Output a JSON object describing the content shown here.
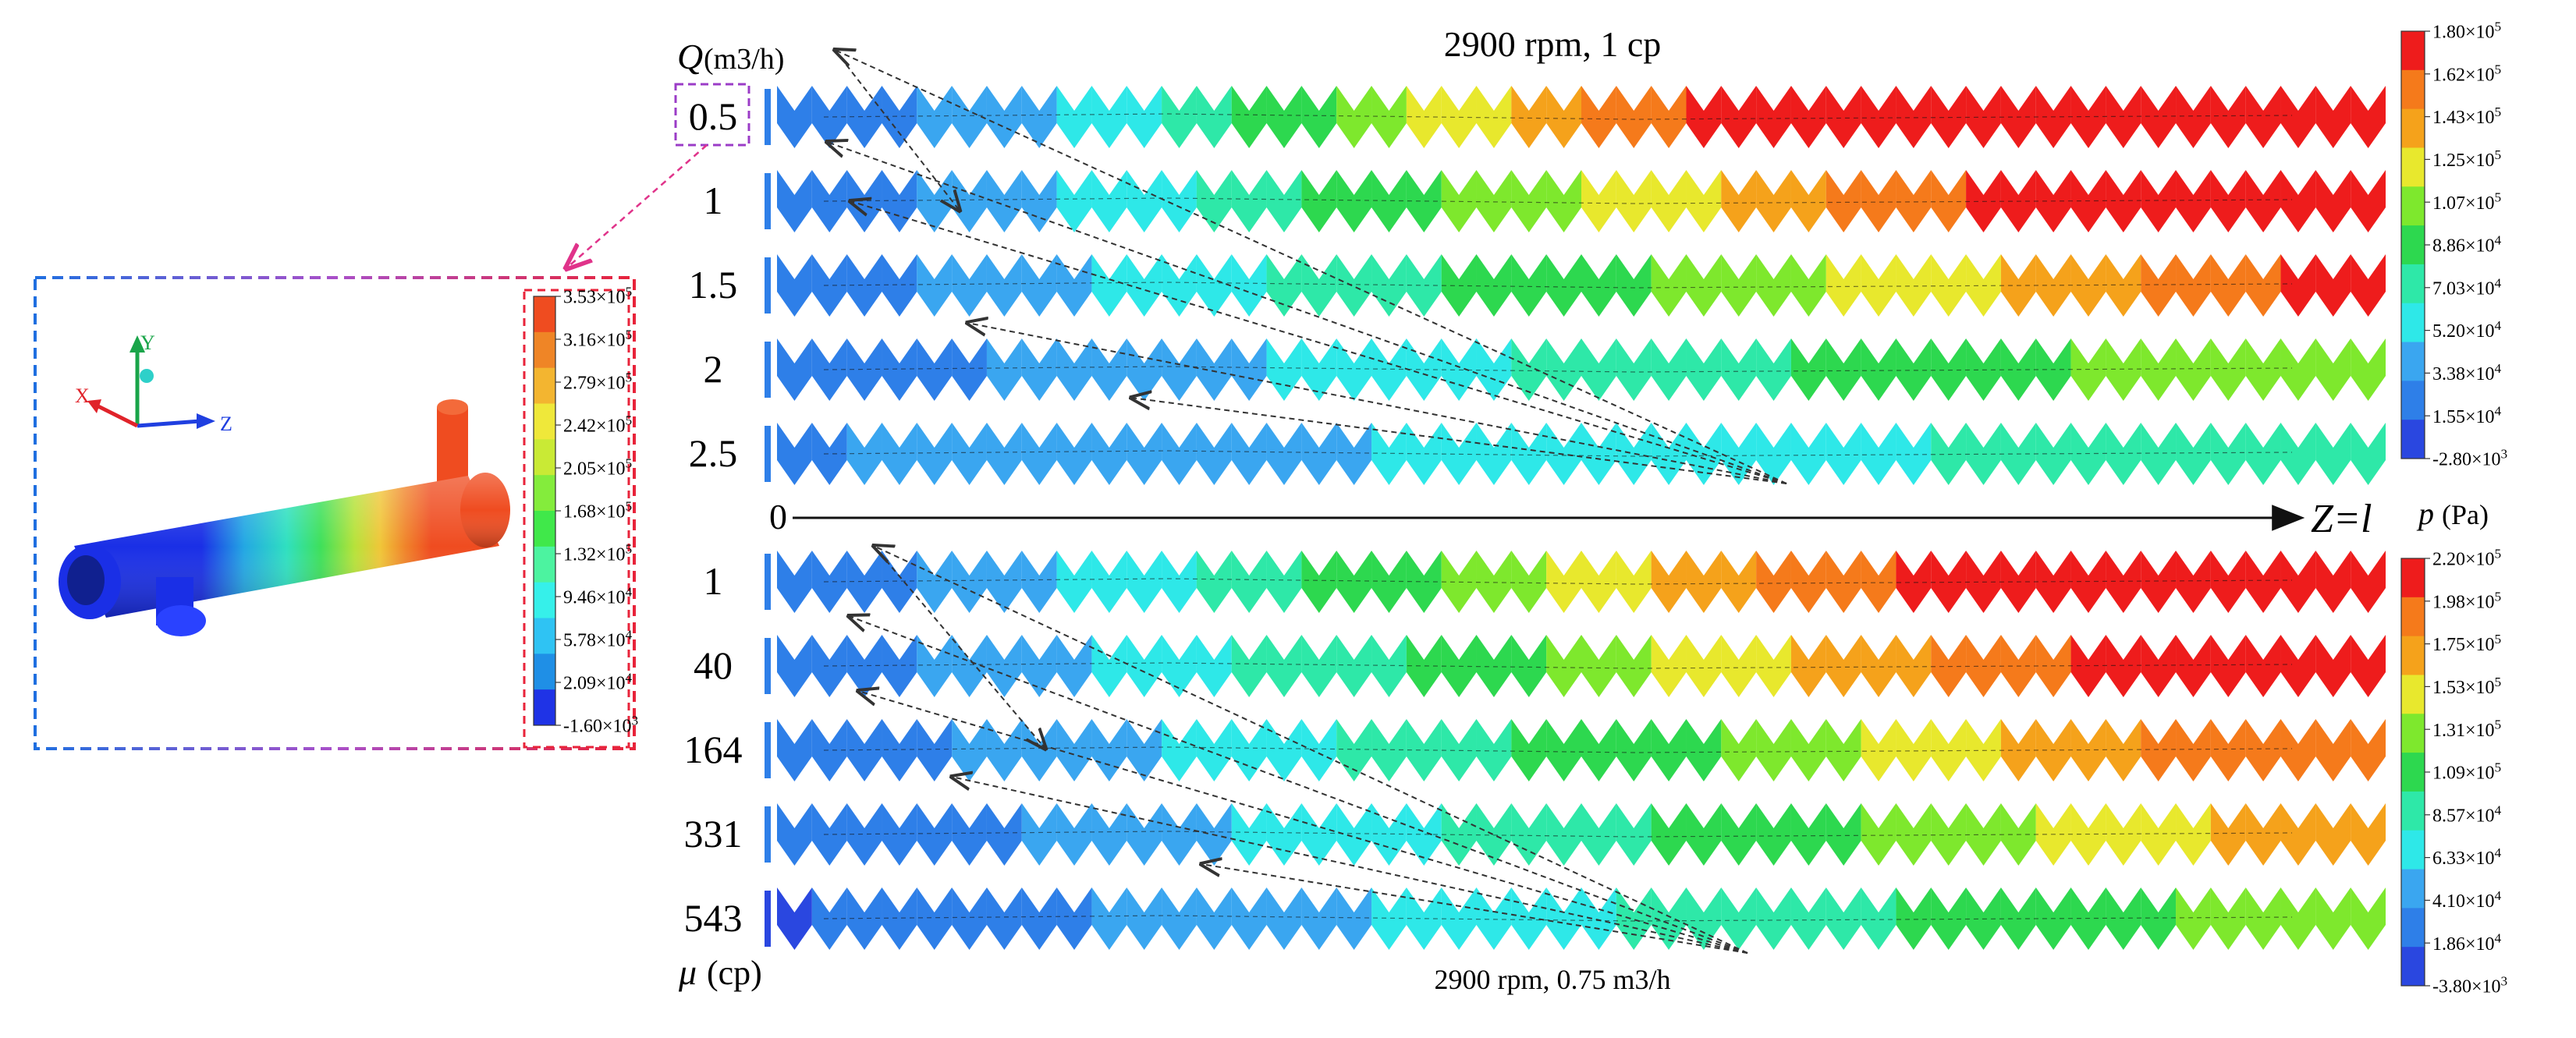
{
  "palettes": {
    "flow_colors": [
      "#2a47e0",
      "#2e7fe8",
      "#3aa6f0",
      "#2ee8e8",
      "#2ee8a8",
      "#2dd84f",
      "#7ee82d",
      "#e8e82d",
      "#f5a21b",
      "#f57a1b",
      "#ee1c1c"
    ],
    "inset_colors": [
      "#1f33e6",
      "#1f8fe6",
      "#2fc3f3",
      "#36f0ea",
      "#4cf3a0",
      "#40e84a",
      "#84ec3c",
      "#c9ea35",
      "#efe83a",
      "#f3b530",
      "#ef8526",
      "#ef4c20"
    ]
  },
  "top_panel": {
    "title": "2900 rpm, 1 cp",
    "row_header_var": "Q",
    "row_header_unit": "(m3/h)",
    "rows": [
      {
        "label": "0.5",
        "values": [
          0.05,
          0.12,
          0.22,
          0.32,
          0.42,
          0.55,
          0.68,
          0.8,
          0.92,
          1.0,
          1.0,
          1.0,
          1.0,
          1.0,
          1.0
        ]
      },
      {
        "label": "1",
        "values": [
          0.08,
          0.15,
          0.22,
          0.3,
          0.38,
          0.47,
          0.55,
          0.62,
          0.7,
          0.8,
          0.88,
          0.95,
          1.0,
          1.0,
          1.0
        ]
      },
      {
        "label": "1.5",
        "values": [
          0.08,
          0.14,
          0.2,
          0.26,
          0.32,
          0.38,
          0.44,
          0.5,
          0.56,
          0.62,
          0.68,
          0.74,
          0.8,
          0.88,
          0.95
        ]
      },
      {
        "label": "2",
        "values": [
          0.08,
          0.12,
          0.16,
          0.2,
          0.24,
          0.28,
          0.32,
          0.36,
          0.4,
          0.44,
          0.48,
          0.52,
          0.56,
          0.6,
          0.64
        ]
      },
      {
        "label": "2.5",
        "values": [
          0.14,
          0.16,
          0.18,
          0.2,
          0.22,
          0.24,
          0.26,
          0.28,
          0.3,
          0.32,
          0.34,
          0.36,
          0.38,
          0.4,
          0.42
        ]
      }
    ],
    "colorbar": {
      "labels": [
        "1.80×10^5",
        "1.62×10^5",
        "1.43×10^5",
        "1.25×10^5",
        "1.07×10^5",
        "8.86×10^4",
        "7.03×10^4",
        "5.20×10^4",
        "3.38×10^4",
        "1.55×10^4",
        "-2.80×10^3"
      ]
    }
  },
  "axis": {
    "start": "0",
    "end": "Z=l",
    "unit_label_var": "p",
    "unit_label_unit": "(Pa)"
  },
  "bottom_panel": {
    "title": "2900 rpm, 0.75 m3/h",
    "row_header_var": "μ",
    "row_header_unit": "(cp)",
    "rows": [
      {
        "label": "1",
        "values": [
          0.08,
          0.14,
          0.22,
          0.3,
          0.38,
          0.46,
          0.55,
          0.64,
          0.74,
          0.84,
          0.92,
          1.0,
          1.0,
          1.0,
          1.0
        ]
      },
      {
        "label": "40",
        "values": [
          0.08,
          0.14,
          0.2,
          0.27,
          0.34,
          0.41,
          0.48,
          0.56,
          0.64,
          0.72,
          0.8,
          0.88,
          0.95,
          1.0,
          1.0
        ]
      },
      {
        "label": "164",
        "values": [
          0.08,
          0.12,
          0.17,
          0.22,
          0.28,
          0.34,
          0.4,
          0.46,
          0.52,
          0.58,
          0.65,
          0.72,
          0.8,
          0.87,
          0.93
        ]
      },
      {
        "label": "331",
        "values": [
          0.06,
          0.1,
          0.15,
          0.2,
          0.25,
          0.3,
          0.35,
          0.4,
          0.45,
          0.5,
          0.55,
          0.61,
          0.67,
          0.74,
          0.8
        ]
      },
      {
        "label": "543",
        "values": [
          0.04,
          0.08,
          0.12,
          0.16,
          0.2,
          0.24,
          0.28,
          0.32,
          0.36,
          0.4,
          0.44,
          0.48,
          0.52,
          0.56,
          0.6
        ]
      }
    ],
    "colorbar": {
      "labels": [
        "2.20×10^5",
        "1.98×10^5",
        "1.75×10^5",
        "1.53×10^5",
        "1.31×10^5",
        "1.09×10^5",
        "8.57×10^4",
        "6.33×10^4",
        "4.10×10^4",
        "1.86×10^4",
        "-3.80×10^3"
      ]
    }
  },
  "inset": {
    "axis_labels": {
      "x": "X",
      "y": "Y",
      "z": "Z"
    },
    "colorbar": {
      "labels": [
        "3.53×10^5",
        "3.16×10^5",
        "2.79×10^5",
        "2.42×10^5",
        "2.05×10^5",
        "1.68×10^5",
        "1.32×10^5",
        "9.46×10^4",
        "5.78×10^4",
        "2.09×10^4",
        "-1.60×10^3"
      ]
    }
  }
}
